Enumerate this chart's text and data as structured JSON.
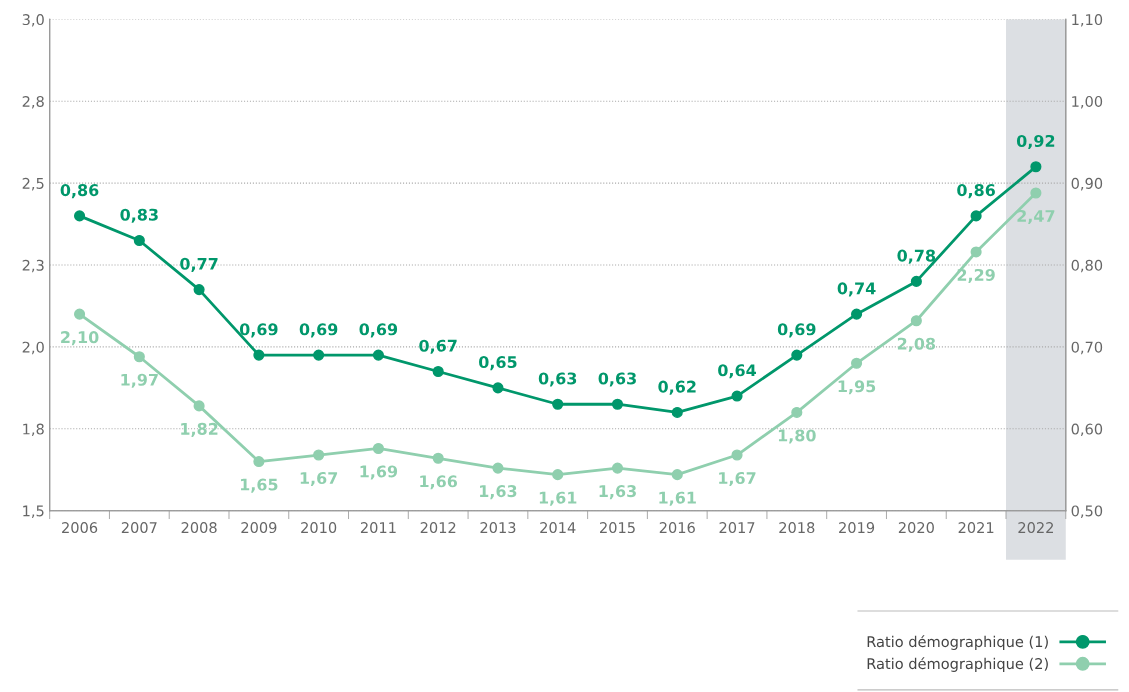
{
  "chart_data": {
    "type": "line",
    "categories": [
      "2006",
      "2007",
      "2008",
      "2009",
      "2010",
      "2011",
      "2012",
      "2013",
      "2014",
      "2015",
      "2016",
      "2017",
      "2018",
      "2019",
      "2020",
      "2021",
      "2022"
    ],
    "series": [
      {
        "name": "Ratio démographique (1)",
        "color": "#00976b",
        "axis": "y2",
        "values": [
          0.86,
          0.83,
          0.77,
          0.69,
          0.69,
          0.69,
          0.67,
          0.65,
          0.63,
          0.63,
          0.62,
          0.64,
          0.69,
          0.74,
          0.78,
          0.86,
          0.92
        ],
        "value_labels": [
          "0,86",
          "0,83",
          "0,77",
          "0,69",
          "0,69",
          "0,69",
          "0,67",
          "0,65",
          "0,63",
          "0,63",
          "0,62",
          "0,64",
          "0,69",
          "0,74",
          "0,78",
          "0,86",
          "0,92"
        ]
      },
      {
        "name": "Ratio démographique (2)",
        "color": "#8fcfae",
        "values": [
          2.1,
          1.97,
          1.82,
          1.65,
          1.67,
          1.69,
          1.66,
          1.63,
          1.61,
          1.63,
          1.61,
          1.67,
          1.8,
          1.95,
          2.08,
          2.29,
          2.47
        ],
        "value_labels": [
          "2,10",
          "1,97",
          "1,82",
          "1,65",
          "1,67",
          "1,69",
          "1,66",
          "1,63",
          "1,61",
          "1,63",
          "1,61",
          "1,67",
          "1,80",
          "1,95",
          "2,08",
          "2,29",
          "2,47"
        ]
      }
    ],
    "ylim": [
      1.5,
      3.0
    ],
    "yticks": [
      {
        "value": 1.5,
        "label": "1,5"
      },
      {
        "value": 1.75,
        "label": "1,8"
      },
      {
        "value": 2.0,
        "label": "2,0"
      },
      {
        "value": 2.25,
        "label": "2,3"
      },
      {
        "value": 2.5,
        "label": "2,5"
      },
      {
        "value": 2.75,
        "label": "2,8"
      },
      {
        "value": 3.0,
        "label": "3,0"
      }
    ],
    "y2lim": [
      0.5,
      1.1
    ],
    "y2ticks": [
      {
        "value": 0.5,
        "label": "0,50"
      },
      {
        "value": 0.6,
        "label": "0,60"
      },
      {
        "value": 0.7,
        "label": "0,70"
      },
      {
        "value": 0.8,
        "label": "0,80"
      },
      {
        "value": 0.9,
        "label": "0,90"
      },
      {
        "value": 1.0,
        "label": "1,00"
      },
      {
        "value": 1.1,
        "label": "1,10"
      }
    ],
    "bands": [
      {
        "axis": "x",
        "from": "2022",
        "to": "2022",
        "color": "#dcdfe3"
      }
    ],
    "grid": "y",
    "legend": "bottom right",
    "marker": "circle",
    "line_style": "solid"
  }
}
